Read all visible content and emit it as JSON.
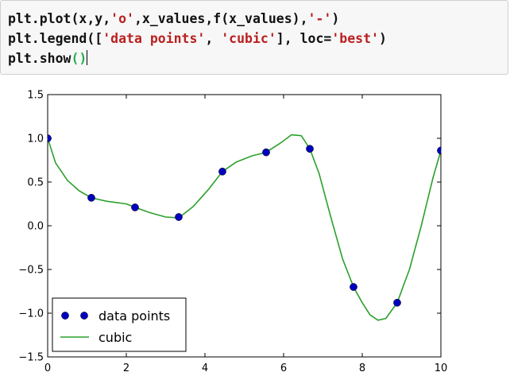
{
  "code": {
    "line1": [
      {
        "t": "plt.plot(x,y,",
        "c": ""
      },
      {
        "t": "'o'",
        "c": "str"
      },
      {
        "t": ",x_values,f(x_values),",
        "c": ""
      },
      {
        "t": "'-'",
        "c": "str"
      },
      {
        "t": ")",
        "c": ""
      }
    ],
    "line2": [
      {
        "t": "plt.legend([",
        "c": ""
      },
      {
        "t": "'data points'",
        "c": "str"
      },
      {
        "t": ", ",
        "c": ""
      },
      {
        "t": "'cubic'",
        "c": "str"
      },
      {
        "t": "], loc=",
        "c": ""
      },
      {
        "t": "'best'",
        "c": "str"
      },
      {
        "t": ")",
        "c": ""
      }
    ],
    "line3_prefix": "plt.show",
    "line3_parens": "()"
  },
  "chart_data": {
    "type": "line",
    "xlim": [
      0,
      10
    ],
    "ylim": [
      -1.5,
      1.5
    ],
    "xticks": [
      0,
      2,
      4,
      6,
      8,
      10
    ],
    "yticks": [
      -1.5,
      -1.0,
      -0.5,
      0.0,
      0.5,
      1.0,
      1.5
    ],
    "xtick_labels": [
      "0",
      "2",
      "4",
      "6",
      "8",
      "10"
    ],
    "ytick_labels": [
      "−1.5",
      "−1.0",
      "−0.5",
      "0.0",
      "0.5",
      "1.0",
      "1.5"
    ],
    "legend_location": "lower-left",
    "grid": false,
    "series": [
      {
        "name": "data points",
        "style": "markers",
        "color": "#0000bf",
        "x": [
          0,
          1.111,
          2.222,
          3.333,
          4.444,
          5.556,
          6.667,
          7.778,
          8.889,
          10
        ],
        "y": [
          1.0,
          0.32,
          0.21,
          0.1,
          0.62,
          0.84,
          0.88,
          -0.7,
          -0.88,
          0.86
        ]
      },
      {
        "name": "cubic",
        "style": "line",
        "color": "#2ca02c",
        "x": [
          0,
          0.2,
          0.5,
          0.8,
          1.111,
          1.5,
          2.0,
          2.222,
          2.6,
          3.0,
          3.333,
          3.7,
          4.1,
          4.444,
          4.8,
          5.2,
          5.556,
          5.9,
          6.2,
          6.45,
          6.667,
          6.9,
          7.2,
          7.5,
          7.778,
          8.0,
          8.2,
          8.4,
          8.6,
          8.889,
          9.2,
          9.5,
          9.8,
          10
        ],
        "y": [
          1.0,
          0.72,
          0.52,
          0.4,
          0.32,
          0.28,
          0.25,
          0.21,
          0.15,
          0.1,
          0.09,
          0.22,
          0.42,
          0.62,
          0.73,
          0.8,
          0.84,
          0.94,
          1.04,
          1.03,
          0.88,
          0.6,
          0.1,
          -0.38,
          -0.7,
          -0.88,
          -1.02,
          -1.08,
          -1.06,
          -0.88,
          -0.5,
          0.0,
          0.55,
          0.86
        ]
      }
    ]
  }
}
